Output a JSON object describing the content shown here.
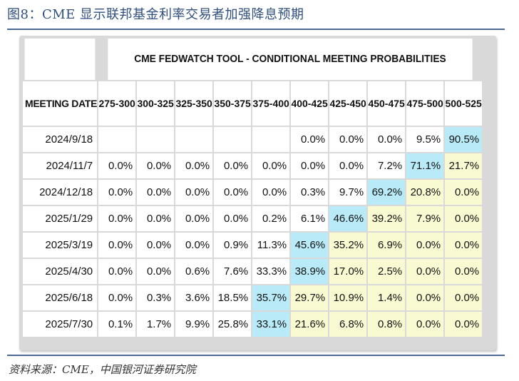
{
  "figure": {
    "title": "图8：CME 显示联邦基金利率交易者加强降息预期",
    "source": "资料来源：CME，中国银河证券研究院"
  },
  "table": {
    "title": "CME FEDWATCH TOOL - CONDITIONAL MEETING PROBABILITIES",
    "date_header": "MEETING DATE",
    "ranges": [
      "275-300",
      "300-325",
      "325-350",
      "350-375",
      "375-400",
      "400-425",
      "425-450",
      "450-475",
      "475-500",
      "500-525"
    ],
    "rows": [
      {
        "date": "2024/9/18",
        "cells": [
          "",
          "",
          "",
          "",
          "",
          "0.0%",
          "0.0%",
          "0.0%",
          "9.5%",
          "90.5%"
        ],
        "blue": 9,
        "yellow_from": null
      },
      {
        "date": "2024/11/7",
        "cells": [
          "0.0%",
          "0.0%",
          "0.0%",
          "0.0%",
          "0.0%",
          "0.0%",
          "0.0%",
          "7.2%",
          "71.1%",
          "21.7%"
        ],
        "blue": 8,
        "yellow_from": 9
      },
      {
        "date": "2024/12/18",
        "cells": [
          "0.0%",
          "0.0%",
          "0.0%",
          "0.0%",
          "0.0%",
          "0.3%",
          "9.7%",
          "69.2%",
          "20.8%",
          "0.0%"
        ],
        "blue": 7,
        "yellow_from": 8
      },
      {
        "date": "2025/1/29",
        "cells": [
          "0.0%",
          "0.0%",
          "0.0%",
          "0.0%",
          "0.2%",
          "6.1%",
          "46.6%",
          "39.2%",
          "7.9%",
          "0.0%"
        ],
        "blue": 6,
        "yellow_from": 7
      },
      {
        "date": "2025/3/19",
        "cells": [
          "0.0%",
          "0.0%",
          "0.0%",
          "0.9%",
          "11.3%",
          "45.6%",
          "35.2%",
          "6.9%",
          "0.0%",
          "0.0%"
        ],
        "blue": 5,
        "yellow_from": 6
      },
      {
        "date": "2025/4/30",
        "cells": [
          "0.0%",
          "0.0%",
          "0.6%",
          "7.6%",
          "33.3%",
          "38.9%",
          "17.0%",
          "2.5%",
          "0.0%",
          "0.0%"
        ],
        "blue": 5,
        "yellow_from": 6
      },
      {
        "date": "2025/6/18",
        "cells": [
          "0.0%",
          "0.3%",
          "3.6%",
          "18.5%",
          "35.7%",
          "29.7%",
          "10.9%",
          "1.4%",
          "0.0%",
          "0.0%"
        ],
        "blue": 4,
        "yellow_from": 5
      },
      {
        "date": "2025/7/30",
        "cells": [
          "0.1%",
          "1.7%",
          "9.9%",
          "25.8%",
          "33.1%",
          "21.6%",
          "6.8%",
          "0.8%",
          "0.0%",
          "0.0%"
        ],
        "blue": 4,
        "yellow_from": 5
      }
    ]
  },
  "colors": {
    "highlight_max": "#b8ebf7",
    "highlight_after": "#fafad2",
    "title_color": "#2f4f7f"
  }
}
